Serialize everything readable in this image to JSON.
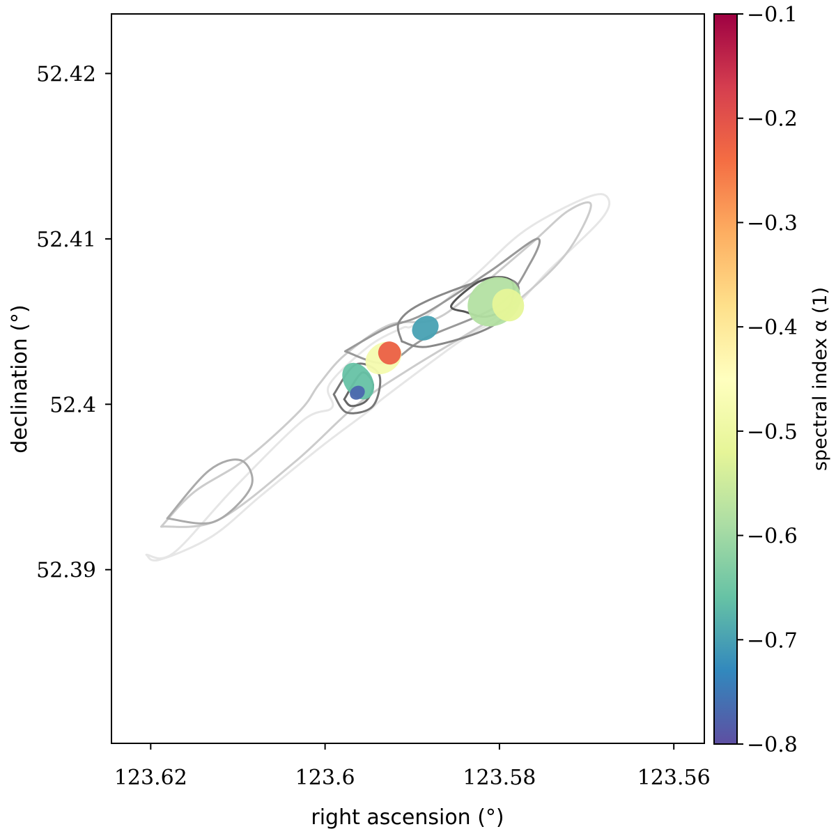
{
  "chart_data": {
    "type": "heatmap",
    "xlabel": "right ascension (°)",
    "ylabel": "declination (°)",
    "x_ticks": [
      "123.62",
      "123.6",
      "123.58",
      "123.56"
    ],
    "y_ticks": [
      "52.42",
      "52.41",
      "52.4",
      "52.39"
    ],
    "xlim": [
      123.6245,
      123.5565
    ],
    "ylim": [
      52.3795,
      52.4236
    ],
    "x_inverted": true,
    "grid": false,
    "colorbar": {
      "label": "spectral index α (1)",
      "ticks": [
        "−0.1",
        "−0.2",
        "−0.3",
        "−0.4",
        "−0.5",
        "−0.6",
        "−0.7",
        "−0.8"
      ],
      "range": [
        -0.8,
        -0.1
      ],
      "colormap": "Spectral",
      "colors": [
        "#5e4fa2",
        "#3288bd",
        "#66c2a5",
        "#abdda4",
        "#e6f598",
        "#ffffbf",
        "#fee08b",
        "#fdae61",
        "#f46d43",
        "#d53e4f",
        "#9e0142"
      ]
    },
    "contours": [
      {
        "level": 1,
        "color": "#e6e6e6",
        "points": [
          [
            123.6205,
            52.3909
          ],
          [
            123.6174,
            52.391
          ],
          [
            123.6105,
            52.3949
          ],
          [
            123.6026,
            52.399
          ],
          [
            123.5992,
            52.3998
          ],
          [
            123.5995,
            52.4012
          ],
          [
            123.595,
            52.4035
          ],
          [
            123.5912,
            52.4046
          ],
          [
            123.5895,
            52.4049
          ],
          [
            123.583,
            52.4077
          ],
          [
            123.5771,
            52.4105
          ],
          [
            123.57,
            52.4125
          ],
          [
            123.5676,
            52.4125
          ],
          [
            123.5683,
            52.4112
          ],
          [
            123.5745,
            52.408
          ],
          [
            123.579,
            52.4055
          ],
          [
            123.584,
            52.404
          ],
          [
            123.593,
            52.4005
          ],
          [
            123.595,
            52.3996
          ],
          [
            123.6003,
            52.3975
          ],
          [
            123.6073,
            52.3945
          ],
          [
            123.613,
            52.392
          ],
          [
            123.619,
            52.3906
          ],
          [
            123.6205,
            52.3909
          ]
        ]
      },
      {
        "level": 2,
        "color": "#cccccc",
        "points": [
          [
            123.6188,
            52.3926
          ],
          [
            123.615,
            52.3947
          ],
          [
            123.609,
            52.3967
          ],
          [
            123.6029,
            52.3996
          ],
          [
            123.6007,
            52.4012
          ],
          [
            123.5977,
            52.403
          ],
          [
            123.5926,
            52.4048
          ],
          [
            123.5876,
            52.4051
          ],
          [
            123.5834,
            52.4066
          ],
          [
            123.5764,
            52.4097
          ],
          [
            123.5721,
            52.4117
          ],
          [
            123.5695,
            52.412
          ],
          [
            123.5725,
            52.409
          ],
          [
            123.5785,
            52.406
          ],
          [
            123.5832,
            52.4044
          ],
          [
            123.5904,
            52.4021
          ],
          [
            123.5965,
            52.3999
          ],
          [
            123.6035,
            52.3965
          ],
          [
            123.6123,
            52.393
          ],
          [
            123.6188,
            52.3926
          ]
        ]
      },
      {
        "level": 3,
        "color": "#aaaaaa",
        "points": [
          [
            123.6181,
            52.3931
          ],
          [
            123.6133,
            52.396
          ],
          [
            123.6096,
            52.3966
          ],
          [
            123.6085,
            52.395
          ],
          [
            123.6127,
            52.3929
          ],
          [
            123.6181,
            52.3931
          ]
        ]
      },
      {
        "level": 4,
        "color": "#999999",
        "points": [
          [
            123.5977,
            52.4032
          ],
          [
            123.593,
            52.4046
          ],
          [
            123.5885,
            52.4055
          ],
          [
            123.5812,
            52.408
          ],
          [
            123.5757,
            52.41
          ],
          [
            123.5765,
            52.4085
          ],
          [
            123.5801,
            52.406
          ],
          [
            123.5885,
            52.404
          ],
          [
            123.593,
            52.4025
          ],
          [
            123.5977,
            52.4032
          ]
        ]
      },
      {
        "level": 5,
        "color": "#888888",
        "points": [
          [
            123.5912,
            52.4038
          ],
          [
            123.5915,
            52.405
          ],
          [
            123.5885,
            52.4062
          ],
          [
            123.5809,
            52.4076
          ],
          [
            123.5778,
            52.407
          ],
          [
            123.5806,
            52.4048
          ],
          [
            123.588,
            52.4035
          ],
          [
            123.5912,
            52.4038
          ]
        ]
      },
      {
        "level": 6,
        "color": "#777777",
        "points": [
          [
            123.599,
            52.4006
          ],
          [
            123.5965,
            52.4024
          ],
          [
            123.5938,
            52.4018
          ],
          [
            123.5945,
            52.3999
          ],
          [
            123.5975,
            52.3995
          ],
          [
            123.599,
            52.4006
          ]
        ]
      },
      {
        "level": 7,
        "color": "#666666",
        "points": [
          [
            123.5978,
            52.4003
          ],
          [
            123.5958,
            52.4019
          ],
          [
            123.5945,
            52.4012
          ],
          [
            123.5953,
            52.4002
          ],
          [
            123.597,
            52.3999
          ],
          [
            123.5978,
            52.4003
          ]
        ]
      },
      {
        "level": 8,
        "color": "#555555",
        "points": [
          [
            123.584,
            52.4056
          ],
          [
            123.5855,
            52.406
          ],
          [
            123.582,
            52.4075
          ],
          [
            123.5787,
            52.4075
          ],
          [
            123.5788,
            52.406
          ],
          [
            123.5815,
            52.4053
          ],
          [
            123.584,
            52.4056
          ]
        ]
      }
    ],
    "alpha_regions": [
      {
        "ra": 123.5933,
        "dec": 52.4028,
        "r_ra": 0.0022,
        "r_dec": 0.0009,
        "alpha": -0.48
      },
      {
        "ra": 123.5926,
        "dec": 52.4031,
        "r_ra": 0.0013,
        "r_dec": 0.0007,
        "alpha": -0.22
      },
      {
        "ra": 123.5962,
        "dec": 52.4014,
        "r_ra": 0.0016,
        "r_dec": 0.0012,
        "alpha": -0.66
      },
      {
        "ra": 123.5963,
        "dec": 52.4007,
        "r_ra": 0.0009,
        "r_dec": 0.0004,
        "alpha": -0.77
      },
      {
        "ra": 123.5885,
        "dec": 52.4046,
        "r_ra": 0.0016,
        "r_dec": 0.0007,
        "alpha": -0.7
      },
      {
        "ra": 123.5806,
        "dec": 52.4062,
        "r_ra": 0.0032,
        "r_dec": 0.0014,
        "alpha": -0.58
      },
      {
        "ra": 123.579,
        "dec": 52.406,
        "r_ra": 0.0018,
        "r_dec": 0.001,
        "alpha": -0.52
      }
    ]
  }
}
